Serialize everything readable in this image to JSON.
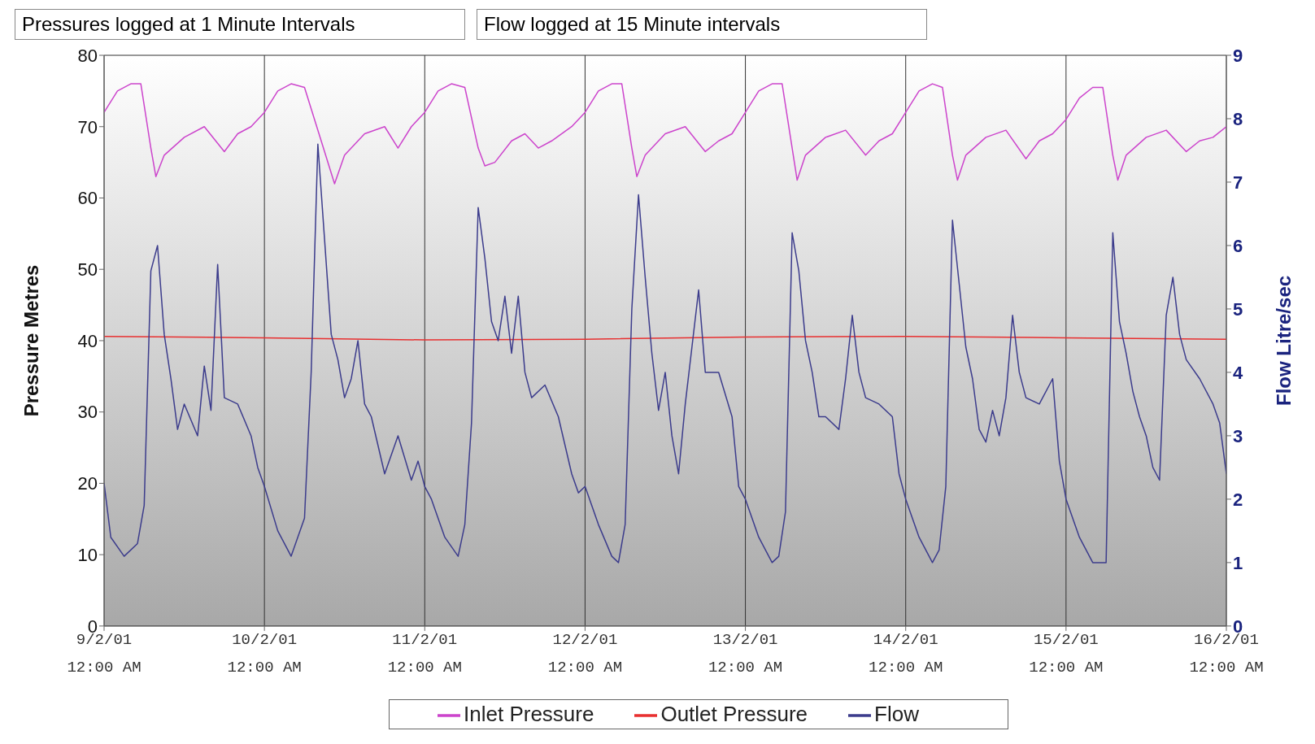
{
  "chart_data": {
    "type": "line",
    "annotations": [
      "Pressures logged at 1 Minute Intervals",
      "Flow logged at 15 Minute intervals"
    ],
    "ylabel": "Pressure Metres",
    "y2label": "Flow Litre/sec",
    "xlim": [
      "--02-09T00:00",
      "--02-16T00:00"
    ],
    "xticks": [
      {
        "value": "--02-09T00:00",
        "label": "9/2/01 12:00 AM"
      },
      {
        "value": "--02-10T00:00",
        "label": "10/2/01 12:00 AM"
      },
      {
        "value": "--02-11T00:00",
        "label": "11/2/01 12:00 AM"
      },
      {
        "value": "--02-12T00:00",
        "label": "12/2/01 12:00 AM"
      },
      {
        "value": "--02-13T00:00",
        "label": "13/2/01 12:00 AM"
      },
      {
        "value": "--02-14T00:00",
        "label": "14/2/01 12:00 AM"
      },
      {
        "value": "--02-15T00:00",
        "label": "15/2/01 12:00 AM"
      },
      {
        "value": "--02-16T00:00",
        "label": "16/2/01 12:00 AM"
      }
    ],
    "ylim": [
      0,
      80
    ],
    "yticks": [
      0,
      10,
      20,
      30,
      40,
      50,
      60,
      70,
      80
    ],
    "y2lim": [
      0,
      9
    ],
    "y2ticks": [
      0,
      1,
      2,
      3,
      4,
      5,
      6,
      7,
      8,
      9
    ],
    "grid": true,
    "legend": "bottom",
    "marker": "none",
    "line_style": "solid",
    "series": [
      {
        "name": "Inlet Pressure",
        "color": "#cc44cc",
        "x": [
          "--02-09T00:00",
          "--02-09T02:00",
          "--02-09T04:00",
          "--02-09T05:30",
          "--02-09T07:00",
          "--02-09T07:45",
          "--02-09T09:00",
          "--02-09T12:00",
          "--02-09T15:00",
          "--02-09T18:00",
          "--02-09T20:00",
          "--02-09T22:00",
          "--02-10T00:00",
          "--02-10T02:00",
          "--02-10T04:00",
          "--02-10T06:00",
          "--02-10T08:30",
          "--02-10T10:30",
          "--02-10T12:00",
          "--02-10T15:00",
          "--02-10T18:00",
          "--02-10T20:00",
          "--02-10T22:00",
          "--02-11T00:00",
          "--02-11T02:00",
          "--02-11T04:00",
          "--02-11T06:00",
          "--02-11T08:00",
          "--02-11T09:00",
          "--02-11T10:30",
          "--02-11T13:00",
          "--02-11T15:00",
          "--02-11T17:00",
          "--02-11T19:00",
          "--02-11T22:00",
          "--02-12T00:00",
          "--02-12T02:00",
          "--02-12T04:00",
          "--02-12T05:30",
          "--02-12T07:00",
          "--02-12T07:45",
          "--02-12T09:00",
          "--02-12T12:00",
          "--02-12T15:00",
          "--02-12T18:00",
          "--02-12T20:00",
          "--02-12T22:00",
          "--02-13T00:00",
          "--02-13T02:00",
          "--02-13T04:00",
          "--02-13T05:30",
          "--02-13T07:00",
          "--02-13T07:45",
          "--02-13T09:00",
          "--02-13T12:00",
          "--02-13T15:00",
          "--02-13T18:00",
          "--02-13T20:00",
          "--02-13T22:00",
          "--02-14T00:00",
          "--02-14T02:00",
          "--02-14T04:00",
          "--02-14T05:30",
          "--02-14T07:00",
          "--02-14T07:45",
          "--02-14T09:00",
          "--02-14T12:00",
          "--02-14T15:00",
          "--02-14T18:00",
          "--02-14T20:00",
          "--02-14T22:00",
          "--02-15T00:00",
          "--02-15T02:00",
          "--02-15T04:00",
          "--02-15T05:30",
          "--02-15T07:00",
          "--02-15T07:45",
          "--02-15T09:00",
          "--02-15T12:00",
          "--02-15T15:00",
          "--02-15T18:00",
          "--02-15T20:00",
          "--02-15T22:00",
          "--02-16T00:00"
        ],
        "values": [
          72,
          75,
          76,
          76,
          67,
          63,
          66,
          68.5,
          70,
          66.5,
          69,
          70,
          72,
          75,
          76,
          75.5,
          68,
          62,
          66,
          69,
          70,
          67,
          70,
          72,
          75,
          76,
          75.5,
          67,
          64.5,
          65,
          68,
          69,
          67,
          68,
          70,
          72,
          75,
          76,
          76,
          67,
          63,
          66,
          69,
          70,
          66.5,
          68,
          69,
          72,
          75,
          76,
          76,
          67,
          62.5,
          66,
          68.5,
          69.5,
          66,
          68,
          69,
          72,
          75,
          76,
          75.5,
          66,
          62.5,
          66,
          68.5,
          69.5,
          65.5,
          68,
          69,
          71,
          74,
          75.5,
          75.5,
          66,
          62.5,
          66,
          68.5,
          69.5,
          66.5,
          68,
          68.5,
          70
        ]
      },
      {
        "name": "Outlet Pressure",
        "color": "#e83030",
        "x": [
          "--02-09T00:00",
          "--02-10T00:00",
          "--02-11T00:00",
          "--02-12T00:00",
          "--02-13T00:00",
          "--02-14T00:00",
          "--02-15T00:00",
          "--02-16T00:00"
        ],
        "values": [
          40.6,
          40.4,
          40.1,
          40.2,
          40.5,
          40.6,
          40.4,
          40.2
        ]
      },
      {
        "name": "Flow",
        "color": "#3c3c8c",
        "axis": "y2",
        "x": [
          "--02-09T00:00",
          "--02-09T01:00",
          "--02-09T03:00",
          "--02-09T05:00",
          "--02-09T06:00",
          "--02-09T07:00",
          "--02-09T08:00",
          "--02-09T09:00",
          "--02-09T10:00",
          "--02-09T11:00",
          "--02-09T12:00",
          "--02-09T14:00",
          "--02-09T15:00",
          "--02-09T16:00",
          "--02-09T17:00",
          "--02-09T18:00",
          "--02-09T20:00",
          "--02-09T22:00",
          "--02-09T23:00",
          "--02-10T00:00",
          "--02-10T02:00",
          "--02-10T04:00",
          "--02-10T06:00",
          "--02-10T07:00",
          "--02-10T08:00",
          "--02-10T09:00",
          "--02-10T10:00",
          "--02-10T11:00",
          "--02-10T12:00",
          "--02-10T13:00",
          "--02-10T14:00",
          "--02-10T15:00",
          "--02-10T16:00",
          "--02-10T18:00",
          "--02-10T20:00",
          "--02-10T22:00",
          "--02-10T23:00",
          "--02-11T00:00",
          "--02-11T01:00",
          "--02-11T03:00",
          "--02-11T05:00",
          "--02-11T06:00",
          "--02-11T07:00",
          "--02-11T08:00",
          "--02-11T09:00",
          "--02-11T10:00",
          "--02-11T11:00",
          "--02-11T12:00",
          "--02-11T13:00",
          "--02-11T14:00",
          "--02-11T15:00",
          "--02-11T16:00",
          "--02-11T18:00",
          "--02-11T20:00",
          "--02-11T22:00",
          "--02-11T23:00",
          "--02-12T00:00",
          "--02-12T02:00",
          "--02-12T04:00",
          "--02-12T05:00",
          "--02-12T06:00",
          "--02-12T07:00",
          "--02-12T08:00",
          "--02-12T09:00",
          "--02-12T10:00",
          "--02-12T11:00",
          "--02-12T12:00",
          "--02-12T13:00",
          "--02-12T14:00",
          "--02-12T15:00",
          "--02-12T16:00",
          "--02-12T17:00",
          "--02-12T18:00",
          "--02-12T20:00",
          "--02-12T22:00",
          "--02-12T23:00",
          "--02-13T00:00",
          "--02-13T02:00",
          "--02-13T04:00",
          "--02-13T05:00",
          "--02-13T06:00",
          "--02-13T07:00",
          "--02-13T08:00",
          "--02-13T09:00",
          "--02-13T10:00",
          "--02-13T11:00",
          "--02-13T12:00",
          "--02-13T14:00",
          "--02-13T15:00",
          "--02-13T16:00",
          "--02-13T17:00",
          "--02-13T18:00",
          "--02-13T20:00",
          "--02-13T22:00",
          "--02-13T23:00",
          "--02-14T00:00",
          "--02-14T02:00",
          "--02-14T04:00",
          "--02-14T05:00",
          "--02-14T06:00",
          "--02-14T07:00",
          "--02-14T08:00",
          "--02-14T09:00",
          "--02-14T10:00",
          "--02-14T11:00",
          "--02-14T12:00",
          "--02-14T13:00",
          "--02-14T14:00",
          "--02-14T15:00",
          "--02-14T16:00",
          "--02-14T17:00",
          "--02-14T18:00",
          "--02-14T20:00",
          "--02-14T22:00",
          "--02-14T23:00",
          "--02-15T00:00",
          "--02-15T02:00",
          "--02-15T04:00",
          "--02-15T05:00",
          "--02-15T06:00",
          "--02-15T07:00",
          "--02-15T08:00",
          "--02-15T09:00",
          "--02-15T10:00",
          "--02-15T11:00",
          "--02-15T12:00",
          "--02-15T13:00",
          "--02-15T14:00",
          "--02-15T15:00",
          "--02-15T16:00",
          "--02-15T17:00",
          "--02-15T18:00",
          "--02-15T20:00",
          "--02-15T22:00",
          "--02-15T23:00",
          "--02-16T00:00"
        ],
        "values": [
          2.25,
          1.4,
          1.1,
          1.3,
          1.9,
          5.6,
          6.0,
          4.6,
          3.9,
          3.1,
          3.5,
          3.0,
          4.1,
          3.4,
          5.7,
          3.6,
          3.5,
          3.0,
          2.5,
          2.2,
          1.5,
          1.1,
          1.7,
          4.0,
          7.6,
          6.1,
          4.6,
          4.2,
          3.6,
          3.9,
          4.5,
          3.5,
          3.3,
          2.4,
          3.0,
          2.3,
          2.6,
          2.2,
          2.0,
          1.4,
          1.1,
          1.6,
          3.2,
          6.6,
          5.8,
          4.8,
          4.5,
          5.2,
          4.3,
          5.2,
          4.0,
          3.6,
          3.8,
          3.3,
          2.4,
          2.1,
          2.2,
          1.6,
          1.1,
          1.0,
          1.6,
          5.0,
          6.8,
          5.5,
          4.3,
          3.4,
          4.0,
          3.0,
          2.4,
          3.5,
          4.4,
          5.3,
          4.0,
          4.0,
          3.3,
          2.2,
          2.0,
          1.4,
          1.0,
          1.1,
          1.8,
          6.2,
          5.6,
          4.5,
          4.0,
          3.3,
          3.3,
          3.1,
          3.9,
          4.9,
          4.0,
          3.6,
          3.5,
          3.3,
          2.4,
          2.0,
          1.4,
          1.0,
          1.2,
          2.2,
          6.4,
          5.4,
          4.4,
          3.9,
          3.1,
          2.9,
          3.4,
          3.0,
          3.6,
          4.9,
          4.0,
          3.6,
          3.5,
          3.9,
          2.6,
          2.0,
          1.4,
          1.0,
          1.0,
          1.0,
          6.2,
          4.8,
          4.3,
          3.7,
          3.3,
          3.0,
          2.5,
          2.3,
          4.9,
          5.5,
          4.6,
          4.2,
          3.9,
          3.5,
          3.2,
          2.4
        ]
      }
    ]
  }
}
